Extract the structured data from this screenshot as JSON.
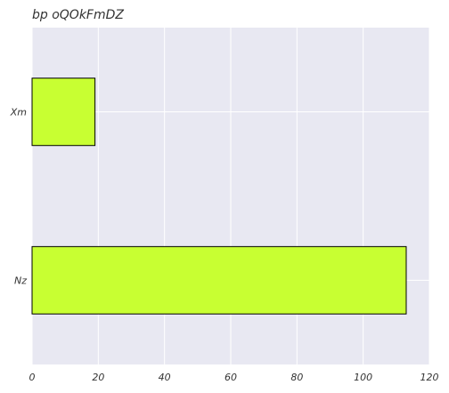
{
  "chart_data": {
    "type": "bar",
    "orientation": "horizontal",
    "title": "bp oQOkFmDZ",
    "xlabel": "",
    "ylabel": "",
    "categories": [
      "Xm",
      "Nz"
    ],
    "values": [
      19,
      113
    ],
    "xlim": [
      0,
      120
    ],
    "xticks": [
      0,
      20,
      40,
      60,
      80,
      100,
      120
    ],
    "grid": true,
    "legend": "none",
    "colors": {
      "bar_fill": "#c8ff32",
      "bar_edge": "#000000",
      "plot_background": "#e8e8f2",
      "grid": "#ffffff",
      "text": "#333333"
    }
  }
}
